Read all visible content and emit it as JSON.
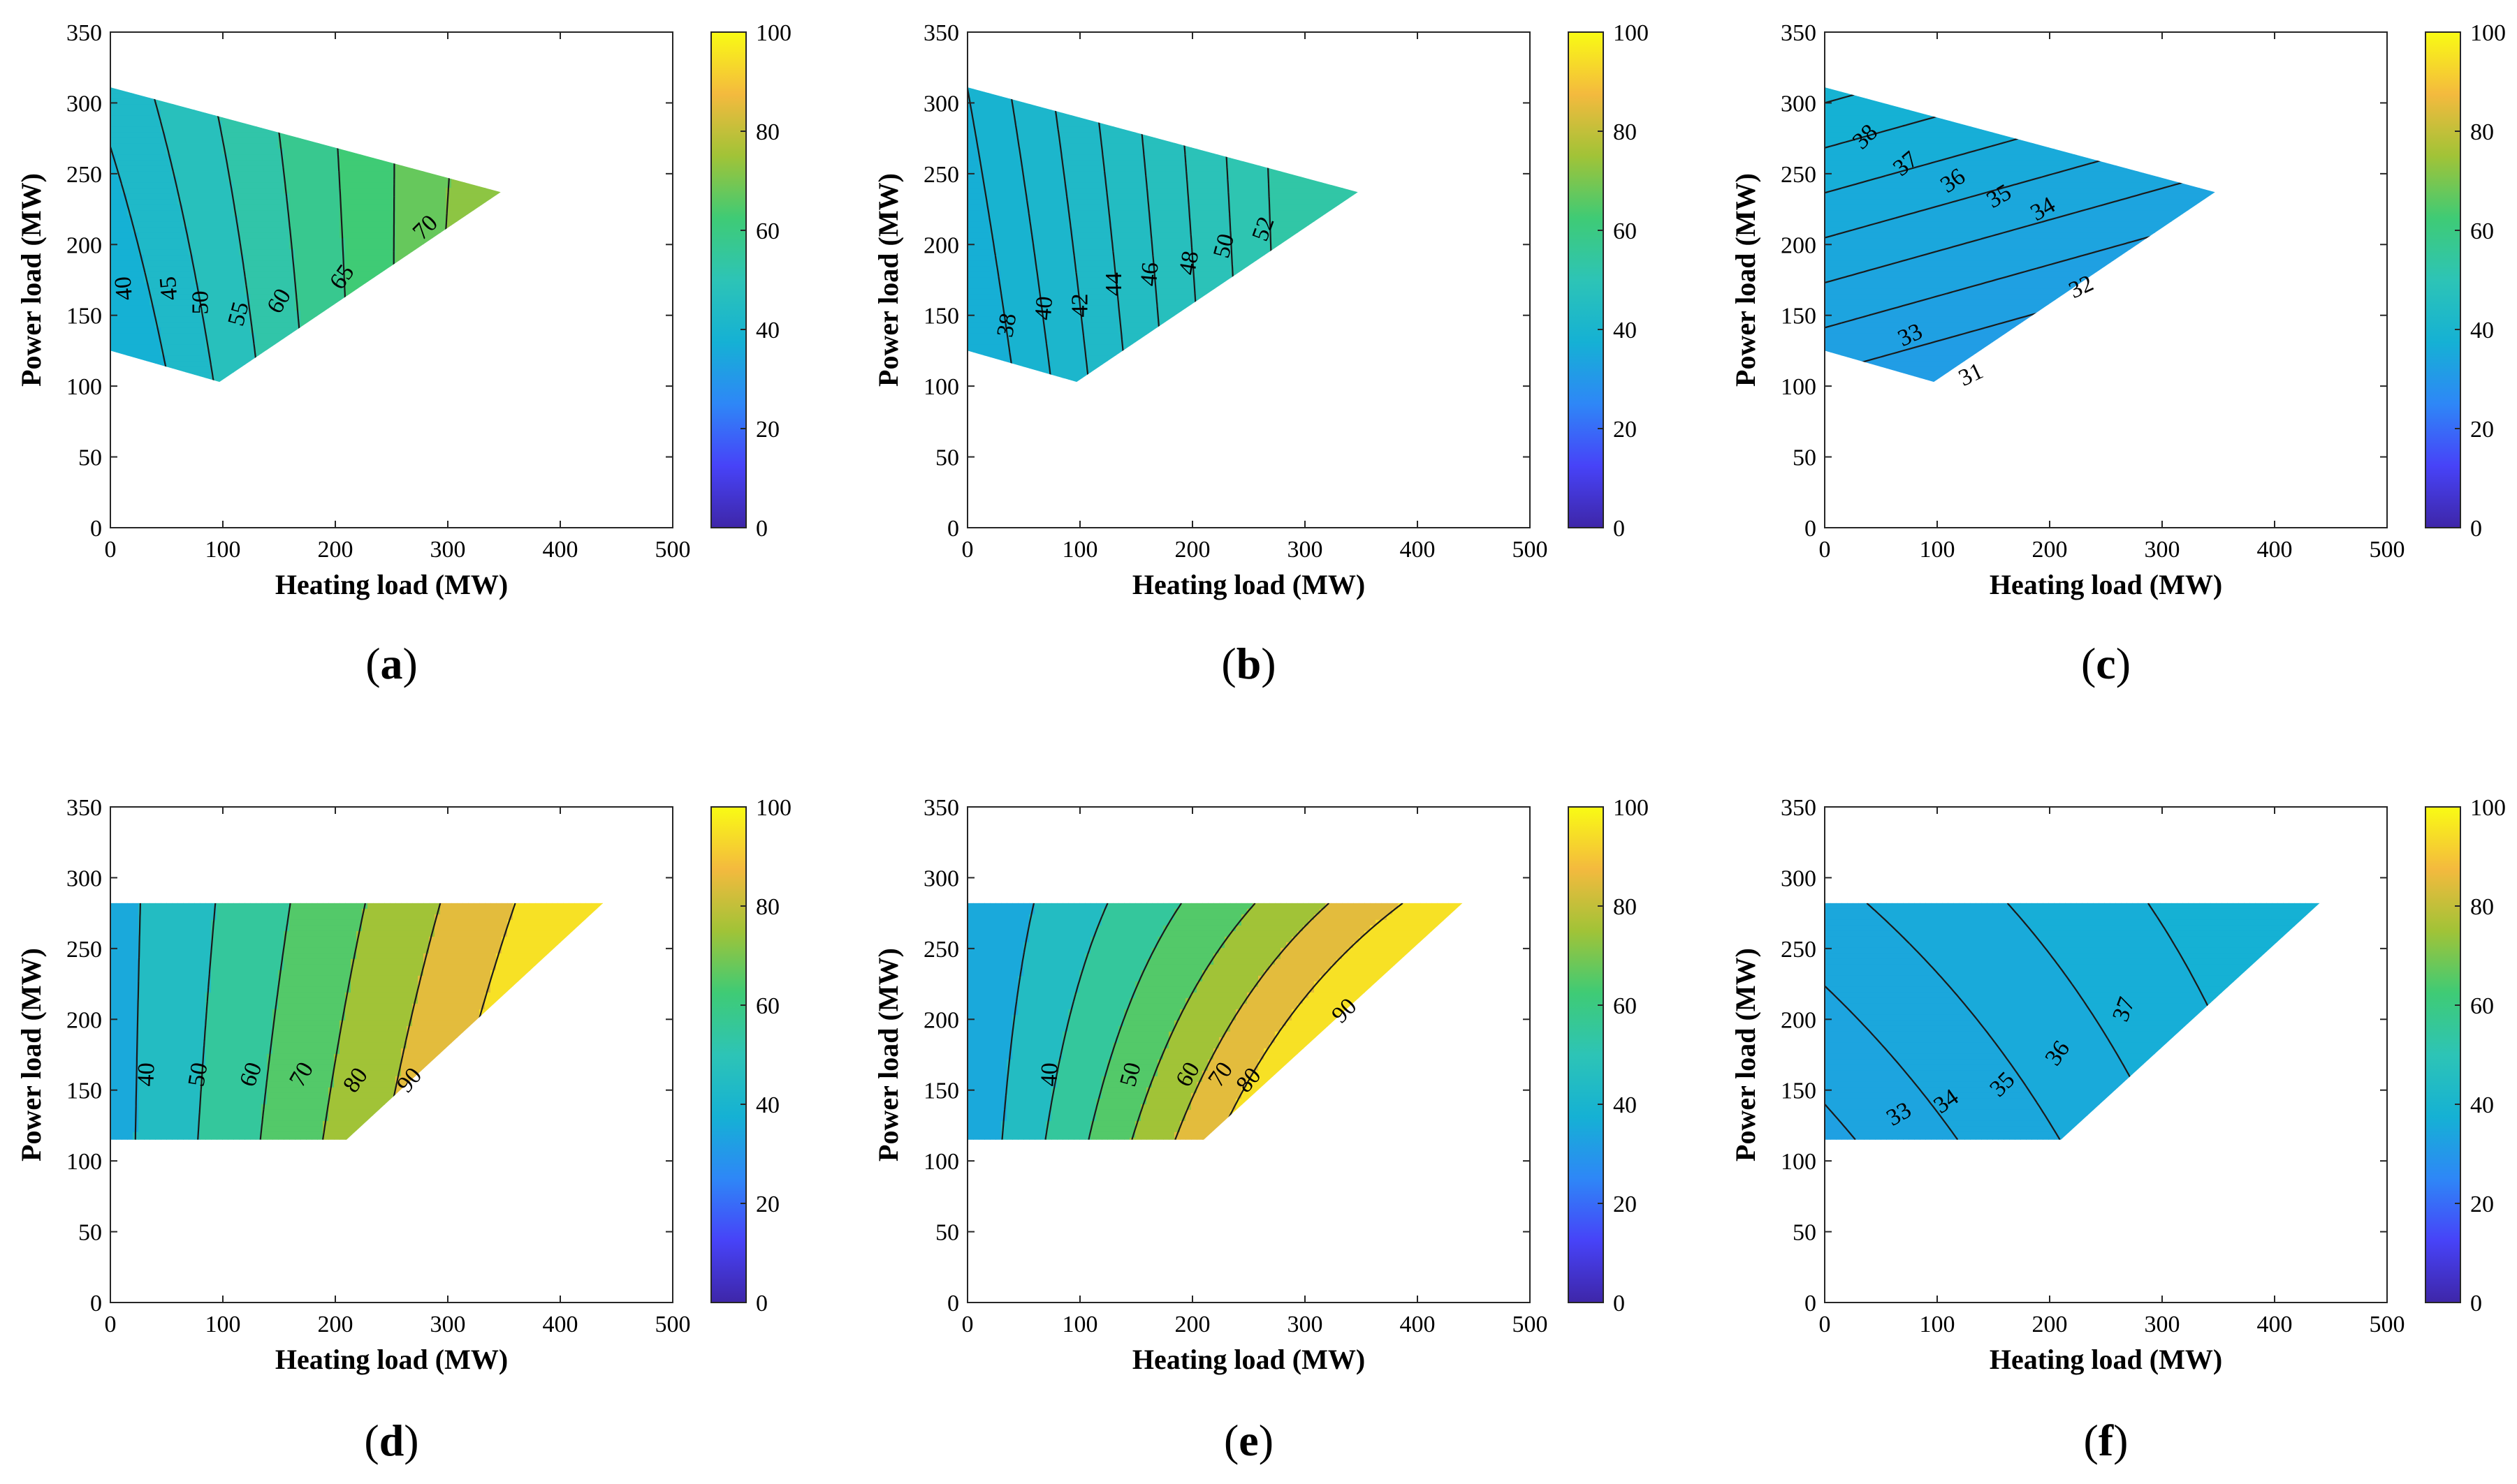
{
  "figure": {
    "colorbar": {
      "min": 0,
      "max": 100,
      "ticks": [
        "0",
        "20",
        "40",
        "60",
        "80",
        "100"
      ]
    },
    "colormap": [
      "#3e26a8",
      "#4743f8",
      "#2e87f7",
      "#15b1d4",
      "#2dc4b6",
      "#3fcb75",
      "#a1c337",
      "#f4ba3e",
      "#f9fb14"
    ]
  },
  "chart_data": [
    {
      "type": "contour",
      "panel_label": "a",
      "xlabel": "Heating load (MW)",
      "ylabel": "Power load (MW)",
      "xlim": [
        0,
        500
      ],
      "ylim": [
        0,
        350
      ],
      "xticks": [
        "0",
        "100",
        "200",
        "300",
        "400",
        "500"
      ],
      "yticks": [
        "0",
        "50",
        "100",
        "150",
        "200",
        "250",
        "300",
        "350"
      ],
      "region": [
        [
          0,
          125
        ],
        [
          0,
          311
        ],
        [
          347,
          237
        ],
        [
          97,
          103
        ]
      ],
      "field": {
        "x0": 0,
        "x1": 330,
        "y0": 90,
        "y1": 320,
        "v00": 33,
        "v10": 75,
        "v01": 42,
        "v11": 72
      },
      "contour_levels": [
        40,
        45,
        50,
        55,
        60,
        65,
        70
      ],
      "contour_labels": [
        {
          "text": "40",
          "x": 12,
          "y": 169,
          "angle": -95
        },
        {
          "text": "45",
          "x": 52,
          "y": 169,
          "angle": -95
        },
        {
          "text": "50",
          "x": 80,
          "y": 159,
          "angle": -90
        },
        {
          "text": "55",
          "x": 114,
          "y": 151,
          "angle": -75
        },
        {
          "text": "60",
          "x": 150,
          "y": 160,
          "angle": -60
        },
        {
          "text": "65",
          "x": 206,
          "y": 177,
          "angle": -55
        },
        {
          "text": "70",
          "x": 280,
          "y": 212,
          "angle": -45
        }
      ]
    },
    {
      "type": "contour",
      "panel_label": "b",
      "xlabel": "Heating load (MW)",
      "ylabel": "Power load (MW)",
      "xlim": [
        0,
        500
      ],
      "ylim": [
        0,
        350
      ],
      "xticks": [
        "0",
        "100",
        "200",
        "300",
        "400",
        "500"
      ],
      "yticks": [
        "0",
        "50",
        "100",
        "150",
        "200",
        "250",
        "300",
        "350"
      ],
      "region": [
        [
          0,
          125
        ],
        [
          0,
          311
        ],
        [
          347,
          237
        ],
        [
          97,
          103
        ]
      ],
      "field": {
        "x0": 0,
        "x1": 340,
        "y0": 110,
        "y1": 310,
        "v00": 35.6,
        "v10": 56,
        "v01": 38,
        "v11": 56
      },
      "contour_levels": [
        38,
        40,
        42,
        44,
        46,
        48,
        50,
        52
      ],
      "contour_labels": [
        {
          "text": "38",
          "x": 35,
          "y": 143,
          "angle": -80
        },
        {
          "text": "40",
          "x": 68,
          "y": 155,
          "angle": -85
        },
        {
          "text": "42",
          "x": 100,
          "y": 157,
          "angle": -90
        },
        {
          "text": "44",
          "x": 130,
          "y": 172,
          "angle": -90
        },
        {
          "text": "46",
          "x": 162,
          "y": 179,
          "angle": -85
        },
        {
          "text": "48",
          "x": 197,
          "y": 187,
          "angle": -80
        },
        {
          "text": "50",
          "x": 228,
          "y": 199,
          "angle": -75
        },
        {
          "text": "52",
          "x": 263,
          "y": 211,
          "angle": -70
        }
      ]
    },
    {
      "type": "contour",
      "panel_label": "c",
      "xlabel": "Heating load (MW)",
      "ylabel": "Power load (MW)",
      "xlim": [
        0,
        500
      ],
      "ylim": [
        0,
        350
      ],
      "xticks": [
        "0",
        "100",
        "200",
        "300",
        "400",
        "500"
      ],
      "yticks": [
        "0",
        "50",
        "100",
        "150",
        "200",
        "250",
        "300",
        "350"
      ],
      "region": [
        [
          0,
          125
        ],
        [
          0,
          311
        ],
        [
          347,
          237
        ],
        [
          97,
          103
        ]
      ],
      "field": {
        "x0": 0,
        "x1": 300,
        "y0": 100,
        "y1": 300,
        "v00": 31.7,
        "v10": 29.6,
        "v01": 38,
        "v11": 35.9
      },
      "contour_levels": [
        31,
        32,
        33,
        34,
        35,
        36,
        37,
        38
      ],
      "contour_labels": [
        {
          "text": "31",
          "x": 130,
          "y": 108,
          "angle": -25
        },
        {
          "text": "32",
          "x": 228,
          "y": 170,
          "angle": -25
        },
        {
          "text": "33",
          "x": 76,
          "y": 136,
          "angle": -25
        },
        {
          "text": "34",
          "x": 194,
          "y": 225,
          "angle": -30
        },
        {
          "text": "35",
          "x": 155,
          "y": 234,
          "angle": -30
        },
        {
          "text": "36",
          "x": 114,
          "y": 245,
          "angle": -35
        },
        {
          "text": "37",
          "x": 72,
          "y": 257,
          "angle": -40
        },
        {
          "text": "38",
          "x": 36,
          "y": 276,
          "angle": -45
        }
      ]
    },
    {
      "type": "contour",
      "panel_label": "d",
      "xlabel": "Heating load (MW)",
      "ylabel": "Power load (MW)",
      "xlim": [
        0,
        500
      ],
      "ylim": [
        0,
        350
      ],
      "xticks": [
        "0",
        "100",
        "200",
        "300",
        "400",
        "500"
      ],
      "yticks": [
        "0",
        "50",
        "100",
        "150",
        "200",
        "250",
        "300",
        "350"
      ],
      "region": [
        [
          0,
          115
        ],
        [
          0,
          282
        ],
        [
          438,
          282
        ],
        [
          210,
          115
        ]
      ],
      "field": {
        "x0": 0,
        "x1": 400,
        "y0": 115,
        "y1": 282,
        "v00": 36,
        "v10": 108,
        "v01": 36,
        "v11": 96
      },
      "contour_levels": [
        40,
        50,
        60,
        70,
        80,
        90
      ],
      "contour_labels": [
        {
          "text": "40",
          "x": 32,
          "y": 161,
          "angle": -88
        },
        {
          "text": "50",
          "x": 78,
          "y": 161,
          "angle": -80
        },
        {
          "text": "60",
          "x": 125,
          "y": 161,
          "angle": -70
        },
        {
          "text": "70",
          "x": 170,
          "y": 161,
          "angle": -60
        },
        {
          "text": "80",
          "x": 218,
          "y": 157,
          "angle": -55
        },
        {
          "text": "90",
          "x": 266,
          "y": 157,
          "angle": -50
        }
      ]
    },
    {
      "type": "contour",
      "panel_label": "e",
      "xlabel": "Heating load (MW)",
      "ylabel": "Power load (MW)",
      "xlim": [
        0,
        500
      ],
      "ylim": [
        0,
        350
      ],
      "xticks": [
        "0",
        "100",
        "200",
        "300",
        "400",
        "500"
      ],
      "yticks": [
        "0",
        "50",
        "100",
        "150",
        "200",
        "250",
        "300",
        "350"
      ],
      "region": [
        [
          0,
          115
        ],
        [
          0,
          282
        ],
        [
          440,
          282
        ],
        [
          210,
          115
        ]
      ],
      "field": {
        "x0": 0,
        "x1": 400,
        "y0": 115,
        "y1": 282,
        "v00": 32,
        "v10": 136,
        "v01": 31,
        "v11": 92
      },
      "contour_levels": [
        40,
        50,
        60,
        70,
        80,
        90
      ],
      "contour_labels": [
        {
          "text": "40",
          "x": 73,
          "y": 161,
          "angle": -88
        },
        {
          "text": "50",
          "x": 145,
          "y": 161,
          "angle": -75
        },
        {
          "text": "60",
          "x": 196,
          "y": 161,
          "angle": -60
        },
        {
          "text": "70",
          "x": 225,
          "y": 161,
          "angle": -55
        },
        {
          "text": "80",
          "x": 250,
          "y": 157,
          "angle": -50
        },
        {
          "text": "90",
          "x": 335,
          "y": 206,
          "angle": -45
        }
      ]
    },
    {
      "type": "contour",
      "panel_label": "f",
      "xlabel": "Heating load (MW)",
      "ylabel": "Power load (MW)",
      "xlim": [
        0,
        500
      ],
      "ylim": [
        0,
        350
      ],
      "xticks": [
        "0",
        "100",
        "200",
        "300",
        "400",
        "500"
      ],
      "yticks": [
        "0",
        "50",
        "100",
        "150",
        "200",
        "250",
        "300",
        "350"
      ],
      "region": [
        [
          0,
          115
        ],
        [
          0,
          282
        ],
        [
          440,
          282
        ],
        [
          210,
          115
        ]
      ],
      "field": {
        "x0": 0,
        "x1": 400,
        "y0": 115,
        "y1": 282,
        "v00": 32.7,
        "v10": 37.1,
        "v01": 34.7,
        "v11": 37.9
      },
      "contour_levels": [
        33,
        34,
        35,
        36,
        37
      ],
      "contour_labels": [
        {
          "text": "33",
          "x": 66,
          "y": 133,
          "angle": -30
        },
        {
          "text": "34",
          "x": 108,
          "y": 142,
          "angle": -35
        },
        {
          "text": "35",
          "x": 158,
          "y": 154,
          "angle": -45
        },
        {
          "text": "36",
          "x": 207,
          "y": 176,
          "angle": -55
        },
        {
          "text": "37",
          "x": 266,
          "y": 207,
          "angle": -70
        }
      ]
    }
  ]
}
